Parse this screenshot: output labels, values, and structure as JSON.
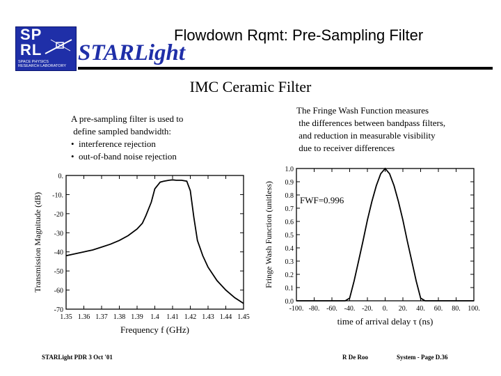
{
  "header": {
    "title": "Flowdown Rqmt:  Pre-Sampling Filter",
    "brand": "STARLight",
    "logo": {
      "main_letters": "SP\nRL",
      "sub_text": "SPACE PHYSICS\nRESEARCH LABORATORY"
    }
  },
  "subtitle": "IMC Ceramic Filter",
  "left_text": "A pre-sampling filter is used to\n define sampled bandwidth:\n•  interference rejection\n•  out-of-band noise rejection",
  "right_text": "The Fringe Wash Function measures\n the differences between bandpass filters,\n and reduction in measurable visibility\n due to receiver differences",
  "chart_data": [
    {
      "type": "line",
      "xlabel": "Frequency  f  (GHz)",
      "ylabel": "Transmission Magnitude (dB)",
      "xlim": [
        1.35,
        1.45
      ],
      "ylim": [
        -70,
        0
      ],
      "xticks": [
        "1.35",
        "1.36",
        "1.37",
        "1.38",
        "1.39",
        "1.4",
        "1.41",
        "1.42",
        "1.43",
        "1.44",
        "1.45"
      ],
      "yticks": [
        "0.",
        "-10.",
        "-20",
        "-30",
        "-40",
        "-50",
        "-60",
        "-70"
      ],
      "series": [
        {
          "x": [
            1.35,
            1.355,
            1.36,
            1.365,
            1.37,
            1.375,
            1.38,
            1.385,
            1.39,
            1.393,
            1.395,
            1.398,
            1.4,
            1.403,
            1.405,
            1.408,
            1.41,
            1.412,
            1.415,
            1.418,
            1.42,
            1.422,
            1.424,
            1.427,
            1.43,
            1.435,
            1.44,
            1.445,
            1.45
          ],
          "y": [
            -42,
            -41,
            -40,
            -39,
            -37.5,
            -36,
            -34,
            -31.5,
            -28,
            -25,
            -21,
            -14,
            -7,
            -3.5,
            -3,
            -2.5,
            -2.3,
            -2.5,
            -2.5,
            -3,
            -8,
            -22,
            -34,
            -42,
            -48,
            -55,
            -60,
            -64,
            -67
          ]
        }
      ]
    },
    {
      "type": "line",
      "xlabel": "time of arrival delay  τ  (ns)",
      "ylabel": "Fringe Wash Function  (unitless)",
      "xlim": [
        -100,
        100
      ],
      "ylim": [
        0,
        1
      ],
      "xticks": [
        "-100.",
        "-80.",
        "-60.",
        "-40.",
        "-20.",
        "0.",
        "20.",
        "40.",
        "60.",
        "80.",
        "100."
      ],
      "yticks": [
        "1.0",
        "0.9",
        "0.8",
        "0.7",
        "0.6",
        "0.5",
        "0.4",
        "0.3",
        "0.2",
        "0.1",
        "0.0"
      ],
      "annotation": "FWF=0.996",
      "series": [
        {
          "x": [
            -100,
            -45,
            -40,
            -35,
            -30,
            -25,
            -20,
            -15,
            -10,
            -5,
            0,
            5,
            10,
            15,
            20,
            25,
            30,
            35,
            40,
            45,
            100
          ],
          "y": [
            0,
            0,
            0.02,
            0.15,
            0.3,
            0.45,
            0.61,
            0.75,
            0.87,
            0.96,
            1.0,
            0.96,
            0.87,
            0.75,
            0.61,
            0.45,
            0.3,
            0.15,
            0.02,
            0,
            0
          ]
        }
      ]
    }
  ],
  "footer": {
    "left": "STARLight PDR  3  Oct  '01",
    "center": "R De Roo",
    "right": "System - Page D.36"
  }
}
